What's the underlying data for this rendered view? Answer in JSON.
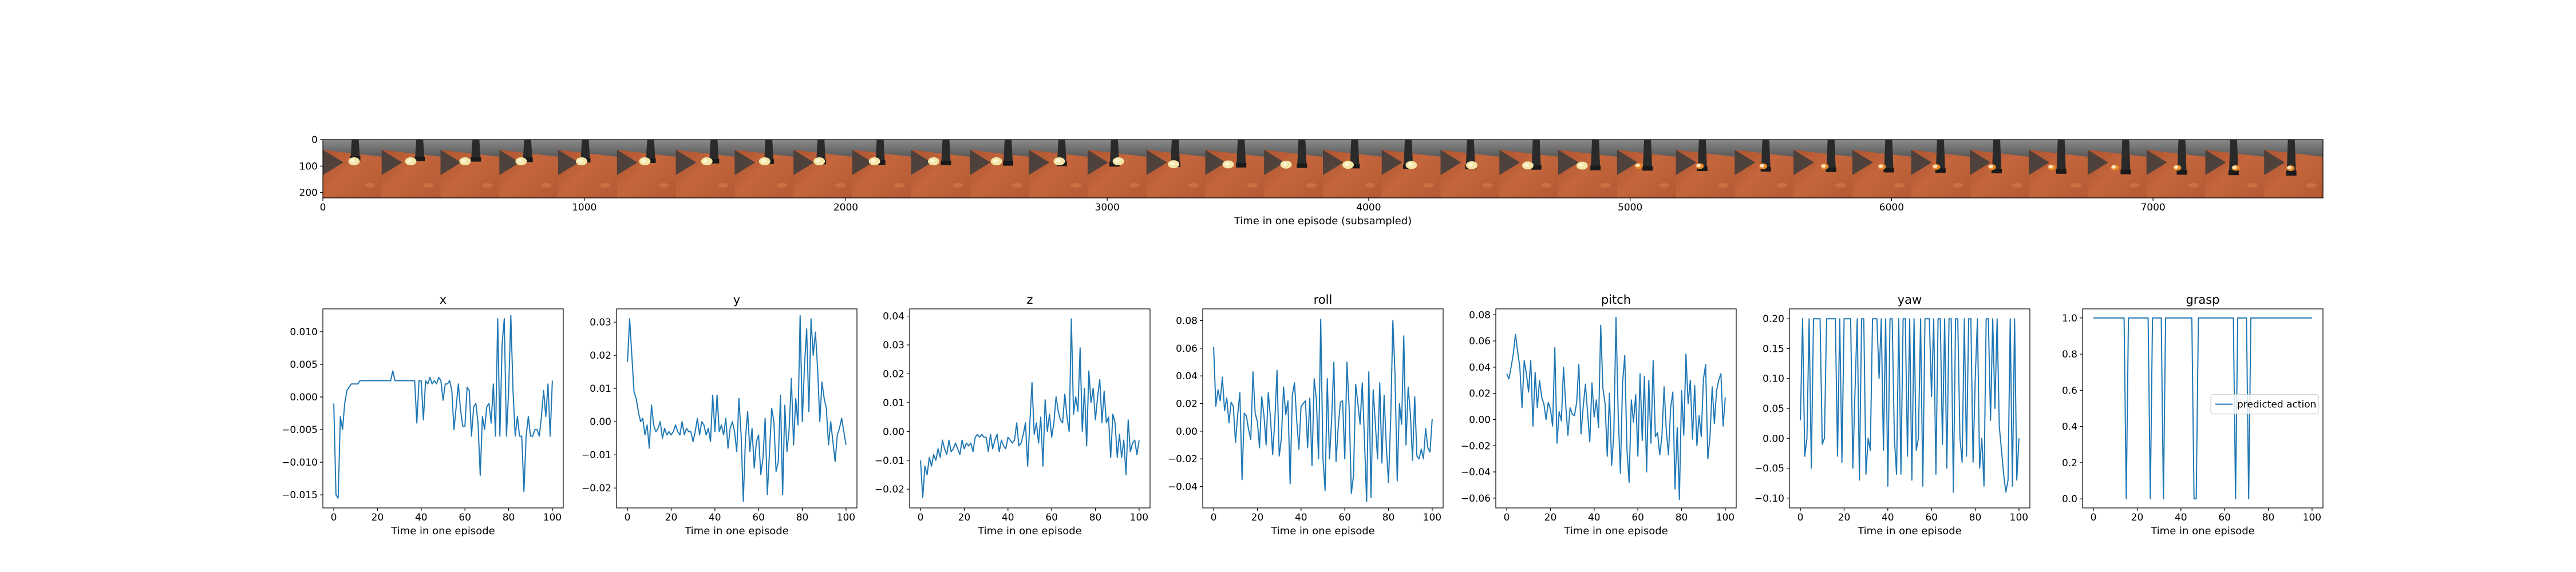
{
  "colors": {
    "series": "#1f77b4",
    "axes": "#000000",
    "background": "#ffffff",
    "legend_border": "#cccccc"
  },
  "filmstrip": {
    "xlabel": "Time in one episode (subsampled)",
    "x_ticks": [
      0,
      1000,
      2000,
      3000,
      4000,
      5000,
      6000,
      7000
    ],
    "y_ticks": [
      0,
      100,
      200
    ],
    "xlim": [
      0,
      7650
    ],
    "ylim": [
      220,
      0
    ],
    "frames": 34,
    "frame_width": 225
  },
  "legend": {
    "label": "predicted action"
  },
  "chart_data": [
    {
      "type": "line",
      "title": "x",
      "xlabel": "Time in one episode",
      "xlim": [
        -5,
        105
      ],
      "ylim": [
        -0.017,
        0.0135
      ],
      "x_ticks": [
        0,
        20,
        40,
        60,
        80,
        100
      ],
      "y_ticks": [
        -0.015,
        -0.01,
        -0.005,
        0.0,
        0.005,
        0.01
      ],
      "y_tick_labels": [
        "−0.015",
        "−0.010",
        "−0.005",
        "0.000",
        "0.005",
        "0.010"
      ],
      "series": [
        {
          "values": [
            -0.001,
            -0.015,
            -0.0155,
            -0.003,
            -0.005,
            -0.001,
            0.001,
            0.0015,
            0.002,
            0.002,
            0.002,
            0.002,
            0.0025,
            0.0025,
            0.0025,
            0.0025,
            0.0025,
            0.0025,
            0.0025,
            0.0025,
            0.0025,
            0.0025,
            0.0025,
            0.0025,
            0.0025,
            0.0025,
            0.0025,
            0.004,
            0.0025,
            0.0025,
            0.0025,
            0.0025,
            0.0025,
            0.0025,
            0.0025,
            0.0025,
            0.0025,
            0.0025,
            -0.004,
            0.0025,
            0.0025,
            -0.0035,
            0.0025,
            0.002,
            0.003,
            0.002,
            0.0025,
            0.002,
            0.003,
            0.0025,
            -0.0005,
            0.002,
            0.002,
            0.0025,
            0.001,
            -0.005,
            -0.0015,
            0.002,
            -0.002,
            -0.0045,
            -0.0045,
            0.0015,
            0.001,
            -0.006,
            -0.0015,
            -0.001,
            -0.004,
            -0.012,
            -0.003,
            -0.005,
            -0.0015,
            -0.001,
            -0.004,
            0.002,
            -0.006,
            0.012,
            -0.006,
            0.008,
            0.012,
            -0.006,
            0.001,
            0.0125,
            0.001,
            -0.006,
            -0.003,
            -0.006,
            -0.006,
            -0.0145,
            -0.006,
            -0.003,
            -0.006,
            -0.006,
            -0.005,
            -0.005,
            -0.006,
            -0.003,
            0.001,
            -0.003,
            0.002,
            -0.006,
            0.0025
          ]
        }
      ]
    },
    {
      "type": "line",
      "title": "y",
      "xlabel": "Time in one episode",
      "xlim": [
        -5,
        105
      ],
      "ylim": [
        -0.026,
        0.034
      ],
      "x_ticks": [
        0,
        20,
        40,
        60,
        80,
        100
      ],
      "y_ticks": [
        -0.02,
        -0.01,
        0.0,
        0.01,
        0.02,
        0.03
      ],
      "y_tick_labels": [
        "−0.02",
        "−0.01",
        "0.00",
        "0.01",
        "0.02",
        "0.03"
      ],
      "series": [
        {
          "values": [
            0.018,
            0.031,
            0.02,
            0.009,
            0.007,
            0.003,
            0.0,
            0.001,
            -0.004,
            -0.001,
            -0.008,
            0.005,
            -0.001,
            -0.003,
            -0.002,
            0.0,
            -0.005,
            -0.002,
            -0.004,
            -0.003,
            -0.004,
            -0.003,
            -0.001,
            -0.003,
            -0.004,
            0.0,
            -0.004,
            -0.002,
            -0.003,
            -0.003,
            -0.006,
            -0.003,
            0.001,
            -0.004,
            0.0,
            -0.001,
            -0.004,
            -0.002,
            -0.006,
            0.008,
            -0.003,
            0.008,
            -0.003,
            -0.001,
            -0.004,
            0.001,
            -0.008,
            -0.002,
            0.0,
            -0.003,
            -0.009,
            0.007,
            -0.004,
            -0.024,
            -0.005,
            0.003,
            -0.009,
            -0.002,
            -0.014,
            -0.006,
            -0.004,
            -0.016,
            -0.011,
            0.001,
            -0.022,
            -0.009,
            0.004,
            0.0,
            -0.015,
            -0.012,
            0.008,
            -0.022,
            0.005,
            -0.009,
            -0.002,
            0.013,
            -0.007,
            0.007,
            -0.001,
            0.032,
            0.0,
            0.017,
            0.028,
            0.003,
            0.031,
            0.02,
            0.027,
            0.016,
            0.0,
            0.012,
            0.007,
            0.004,
            -0.007,
            0.0,
            -0.006,
            -0.012,
            -0.004,
            -0.002,
            0.001,
            -0.003,
            -0.007
          ]
        }
      ]
    },
    {
      "type": "line",
      "title": "z",
      "xlabel": "Time in one episode",
      "xlim": [
        -5,
        105
      ],
      "ylim": [
        -0.0265,
        0.0425
      ],
      "x_ticks": [
        0,
        20,
        40,
        60,
        80,
        100
      ],
      "y_ticks": [
        -0.02,
        -0.01,
        0.0,
        0.01,
        0.02,
        0.03,
        0.04
      ],
      "y_tick_labels": [
        "−0.02",
        "−0.01",
        "0.00",
        "0.01",
        "0.02",
        "0.03",
        "0.04"
      ],
      "series": [
        {
          "values": [
            -0.01,
            -0.023,
            -0.012,
            -0.015,
            -0.009,
            -0.012,
            -0.008,
            -0.01,
            -0.006,
            -0.009,
            -0.003,
            -0.006,
            -0.008,
            -0.003,
            -0.007,
            -0.006,
            -0.004,
            -0.006,
            -0.008,
            -0.003,
            -0.006,
            -0.004,
            -0.005,
            -0.004,
            -0.007,
            -0.002,
            -0.001,
            -0.002,
            -0.001,
            -0.002,
            -0.002,
            -0.007,
            -0.001,
            -0.006,
            -0.003,
            -0.001,
            -0.007,
            -0.003,
            -0.005,
            -0.006,
            -0.002,
            -0.003,
            -0.004,
            -0.003,
            0.003,
            -0.005,
            -0.004,
            -0.001,
            0.003,
            -0.012,
            0.003,
            0.017,
            -0.001,
            0.003,
            -0.004,
            0.005,
            -0.012,
            0.011,
            0.0,
            0.006,
            -0.002,
            0.003,
            0.012,
            0.007,
            0.004,
            0.003,
            0.013,
            0.005,
            0.0,
            0.039,
            0.006,
            0.012,
            0.007,
            0.029,
            0.0,
            0.015,
            -0.005,
            0.021,
            0.01,
            0.015,
            0.004,
            0.012,
            0.018,
            0.003,
            0.014,
            0.003,
            0.005,
            -0.009,
            0.006,
            0.003,
            -0.009,
            -0.001,
            -0.009,
            -0.003,
            -0.015,
            0.004,
            -0.007,
            -0.004,
            -0.003,
            -0.008,
            -0.003
          ]
        }
      ]
    },
    {
      "type": "line",
      "title": "roll",
      "xlabel": "Time in one episode",
      "xlim": [
        -5,
        105
      ],
      "ylim": [
        -0.0555,
        0.0885
      ],
      "x_ticks": [
        0,
        20,
        40,
        60,
        80,
        100
      ],
      "y_ticks": [
        -0.04,
        -0.02,
        0.0,
        0.02,
        0.04,
        0.06,
        0.08
      ],
      "y_tick_labels": [
        "−0.04",
        "−0.02",
        "0.00",
        "0.02",
        "0.04",
        "0.06",
        "0.08"
      ],
      "series": [
        {
          "values": [
            0.061,
            0.018,
            0.03,
            0.022,
            0.039,
            0.015,
            0.024,
            0.006,
            0.021,
            0.018,
            -0.008,
            0.012,
            0.028,
            -0.035,
            0.013,
            0.011,
            0.001,
            -0.006,
            0.043,
            0.013,
            0.007,
            -0.012,
            0.025,
            0.012,
            -0.01,
            0.028,
            0.01,
            -0.017,
            0.008,
            0.044,
            -0.018,
            -0.005,
            0.032,
            0.012,
            0.022,
            -0.038,
            0.026,
            0.035,
            0.008,
            -0.013,
            0.018,
            0.02,
            0.022,
            -0.012,
            0.024,
            -0.025,
            0.038,
            0.023,
            -0.02,
            0.081,
            -0.019,
            -0.043,
            0.038,
            -0.02,
            0.009,
            0.05,
            -0.022,
            0.003,
            0.021,
            0.022,
            -0.02,
            0.05,
            0.017,
            -0.045,
            -0.032,
            0.034,
            0.02,
            0.005,
            0.035,
            -0.006,
            -0.051,
            0.043,
            -0.048,
            0.03,
            0.005,
            -0.02,
            0.035,
            -0.023,
            0.026,
            -0.011,
            -0.037,
            0.008,
            0.08,
            0.04,
            -0.036,
            0.02,
            0.005,
            0.069,
            -0.01,
            0.032,
            0.013,
            -0.021,
            0.025,
            -0.018,
            -0.02,
            -0.013,
            -0.02,
            0.002,
            -0.012,
            -0.015,
            0.009
          ]
        }
      ]
    },
    {
      "type": "line",
      "title": "pitch",
      "xlabel": "Time in one episode",
      "xlim": [
        -5,
        105
      ],
      "ylim": [
        -0.0675,
        0.0845
      ],
      "x_ticks": [
        0,
        20,
        40,
        60,
        80,
        100
      ],
      "y_ticks": [
        -0.06,
        -0.04,
        -0.02,
        0.0,
        0.02,
        0.04,
        0.06,
        0.08
      ],
      "y_tick_labels": [
        "−0.06",
        "−0.04",
        "−0.02",
        "0.00",
        "0.02",
        "0.04",
        "0.06",
        "0.08"
      ],
      "series": [
        {
          "values": [
            0.035,
            0.031,
            0.04,
            0.05,
            0.065,
            0.052,
            0.04,
            0.009,
            0.045,
            0.035,
            0.021,
            0.045,
            -0.005,
            0.036,
            0.009,
            0.03,
            0.017,
            0.012,
            0.0,
            0.013,
            0.008,
            -0.005,
            0.055,
            -0.018,
            0.006,
            -0.001,
            0.04,
            0.011,
            -0.012,
            0.009,
            0.004,
            0.003,
            0.013,
            0.042,
            -0.011,
            0.01,
            0.027,
            0.005,
            -0.017,
            0.028,
            0.002,
            0.015,
            -0.006,
            0.072,
            0.024,
            0.012,
            -0.028,
            0.02,
            -0.035,
            -0.011,
            0.078,
            0.004,
            -0.041,
            0.028,
            0.049,
            -0.023,
            -0.048,
            0.015,
            -0.002,
            0.019,
            -0.028,
            0.035,
            -0.016,
            0.033,
            -0.04,
            0.03,
            -0.018,
            0.045,
            -0.013,
            -0.01,
            -0.027,
            -0.013,
            0.025,
            -0.008,
            -0.027,
            0.009,
            0.021,
            -0.053,
            -0.006,
            -0.061,
            0.022,
            -0.012,
            0.05,
            0.012,
            0.03,
            -0.015,
            0.026,
            -0.02,
            0.003,
            -0.013,
            0.031,
            0.042,
            -0.03,
            -0.013,
            0.025,
            -0.003,
            0.022,
            0.03,
            0.035,
            -0.005,
            0.017
          ]
        }
      ]
    },
    {
      "type": "line",
      "title": "yaw",
      "xlabel": "Time in one episode",
      "xlim": [
        -5,
        105
      ],
      "ylim": [
        -0.1165,
        0.2165
      ],
      "x_ticks": [
        0,
        20,
        40,
        60,
        80,
        100
      ],
      "y_ticks": [
        -0.1,
        -0.05,
        0.0,
        0.05,
        0.1,
        0.15,
        0.2
      ],
      "y_tick_labels": [
        "−0.10",
        "−0.05",
        "0.00",
        "0.05",
        "0.10",
        "0.15",
        "0.20"
      ],
      "series": [
        {
          "values": [
            0.03,
            0.2,
            -0.03,
            0.0,
            0.2,
            -0.05,
            0.2,
            0.2,
            0.2,
            0.2,
            -0.01,
            0.0,
            0.2,
            0.2,
            0.2,
            0.2,
            0.2,
            -0.03,
            0.2,
            -0.04,
            0.2,
            0.2,
            0.2,
            0.2,
            -0.05,
            0.08,
            0.2,
            -0.07,
            0.2,
            0.2,
            -0.06,
            0.0,
            -0.02,
            0.2,
            0.2,
            0.2,
            0.1,
            0.2,
            -0.02,
            0.2,
            -0.08,
            0.2,
            0.2,
            0.0,
            -0.06,
            0.2,
            -0.06,
            0.2,
            0.2,
            -0.03,
            0.2,
            -0.07,
            0.2,
            -0.02,
            0.0,
            0.2,
            -0.08,
            0.2,
            0.2,
            0.2,
            0.07,
            0.2,
            -0.06,
            0.2,
            0.2,
            -0.01,
            0.2,
            -0.05,
            0.2,
            0.2,
            -0.09,
            0.2,
            0.2,
            0.0,
            -0.04,
            0.2,
            -0.03,
            0.2,
            0.2,
            -0.04,
            0.1,
            0.2,
            -0.05,
            0.0,
            -0.08,
            0.2,
            0.2,
            0.03,
            0.2,
            0.05,
            0.2,
            0.02,
            -0.02,
            -0.06,
            -0.09,
            -0.07,
            0.2,
            -0.08,
            0.2,
            -0.07,
            0.0
          ]
        }
      ]
    },
    {
      "type": "line",
      "title": "grasp",
      "xlabel": "Time in one episode",
      "xlim": [
        -5,
        105
      ],
      "ylim": [
        -0.05,
        1.05
      ],
      "x_ticks": [
        0,
        20,
        40,
        60,
        80,
        100
      ],
      "y_ticks": [
        0.0,
        0.2,
        0.4,
        0.6,
        0.8,
        1.0
      ],
      "y_tick_labels": [
        "0.0",
        "0.2",
        "0.4",
        "0.6",
        "0.8",
        "1.0"
      ],
      "legend": {
        "entries": [
          "predicted action"
        ],
        "placement": "center-right"
      },
      "series": [
        {
          "name": "predicted action",
          "values": [
            1,
            1,
            1,
            1,
            1,
            1,
            1,
            1,
            1,
            1,
            1,
            1,
            1,
            1,
            1,
            0,
            1,
            1,
            1,
            1,
            1,
            1,
            1,
            1,
            1,
            1,
            0,
            1,
            1,
            1,
            1,
            1,
            0,
            1,
            1,
            1,
            1,
            1,
            1,
            1,
            1,
            1,
            1,
            1,
            1,
            1,
            0,
            0,
            1,
            1,
            1,
            1,
            1,
            1,
            1,
            1,
            1,
            1,
            1,
            1,
            1,
            1,
            1,
            1,
            1,
            0,
            1,
            1,
            1,
            1,
            1,
            0,
            1,
            1,
            1,
            1,
            1,
            1,
            1,
            1,
            1,
            1,
            1,
            1,
            1,
            1,
            1,
            1,
            1,
            1,
            1,
            1,
            1,
            1,
            1,
            1,
            1,
            1,
            1,
            1,
            1
          ]
        }
      ]
    }
  ]
}
